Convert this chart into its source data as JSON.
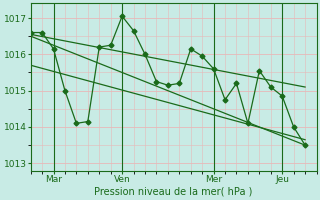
{
  "background_color": "#c8ebe5",
  "grid_color": "#e8b8b8",
  "line_color": "#1a6b1a",
  "spine_color": "#1a6b1a",
  "xlabel": "Pression niveau de la mer( hPa )",
  "ylim": [
    1012.8,
    1017.4
  ],
  "yticks": [
    1013,
    1014,
    1015,
    1016,
    1017
  ],
  "xlim": [
    0,
    25
  ],
  "xtick_positions": [
    2,
    8,
    16,
    22
  ],
  "xtick_labels": [
    "Mar",
    "Ven",
    "Mer",
    "Jeu"
  ],
  "vline_positions": [
    2,
    8,
    16,
    22
  ],
  "main_x": [
    0,
    1,
    2,
    3,
    4,
    5,
    6,
    7,
    8,
    9,
    10,
    11,
    12,
    13,
    14,
    15,
    16,
    17,
    18,
    19,
    20,
    21,
    22,
    23,
    24
  ],
  "main_y": [
    1016.6,
    1016.6,
    1016.15,
    1015.0,
    1014.1,
    1014.15,
    1016.2,
    1016.25,
    1017.05,
    1016.65,
    1016.0,
    1015.25,
    1015.15,
    1015.2,
    1016.15,
    1015.95,
    1015.6,
    1014.75,
    1015.2,
    1014.1,
    1015.55,
    1015.1,
    1014.85,
    1014.0,
    1013.5
  ],
  "trend1_x": [
    0,
    24
  ],
  "trend1_y": [
    1016.55,
    1015.1
  ],
  "trend2_x": [
    0,
    24
  ],
  "trend2_y": [
    1016.5,
    1013.5
  ],
  "trend3_x": [
    0,
    24
  ],
  "trend3_y": [
    1015.7,
    1013.65
  ],
  "figsize": [
    3.2,
    2.0
  ],
  "dpi": 100
}
